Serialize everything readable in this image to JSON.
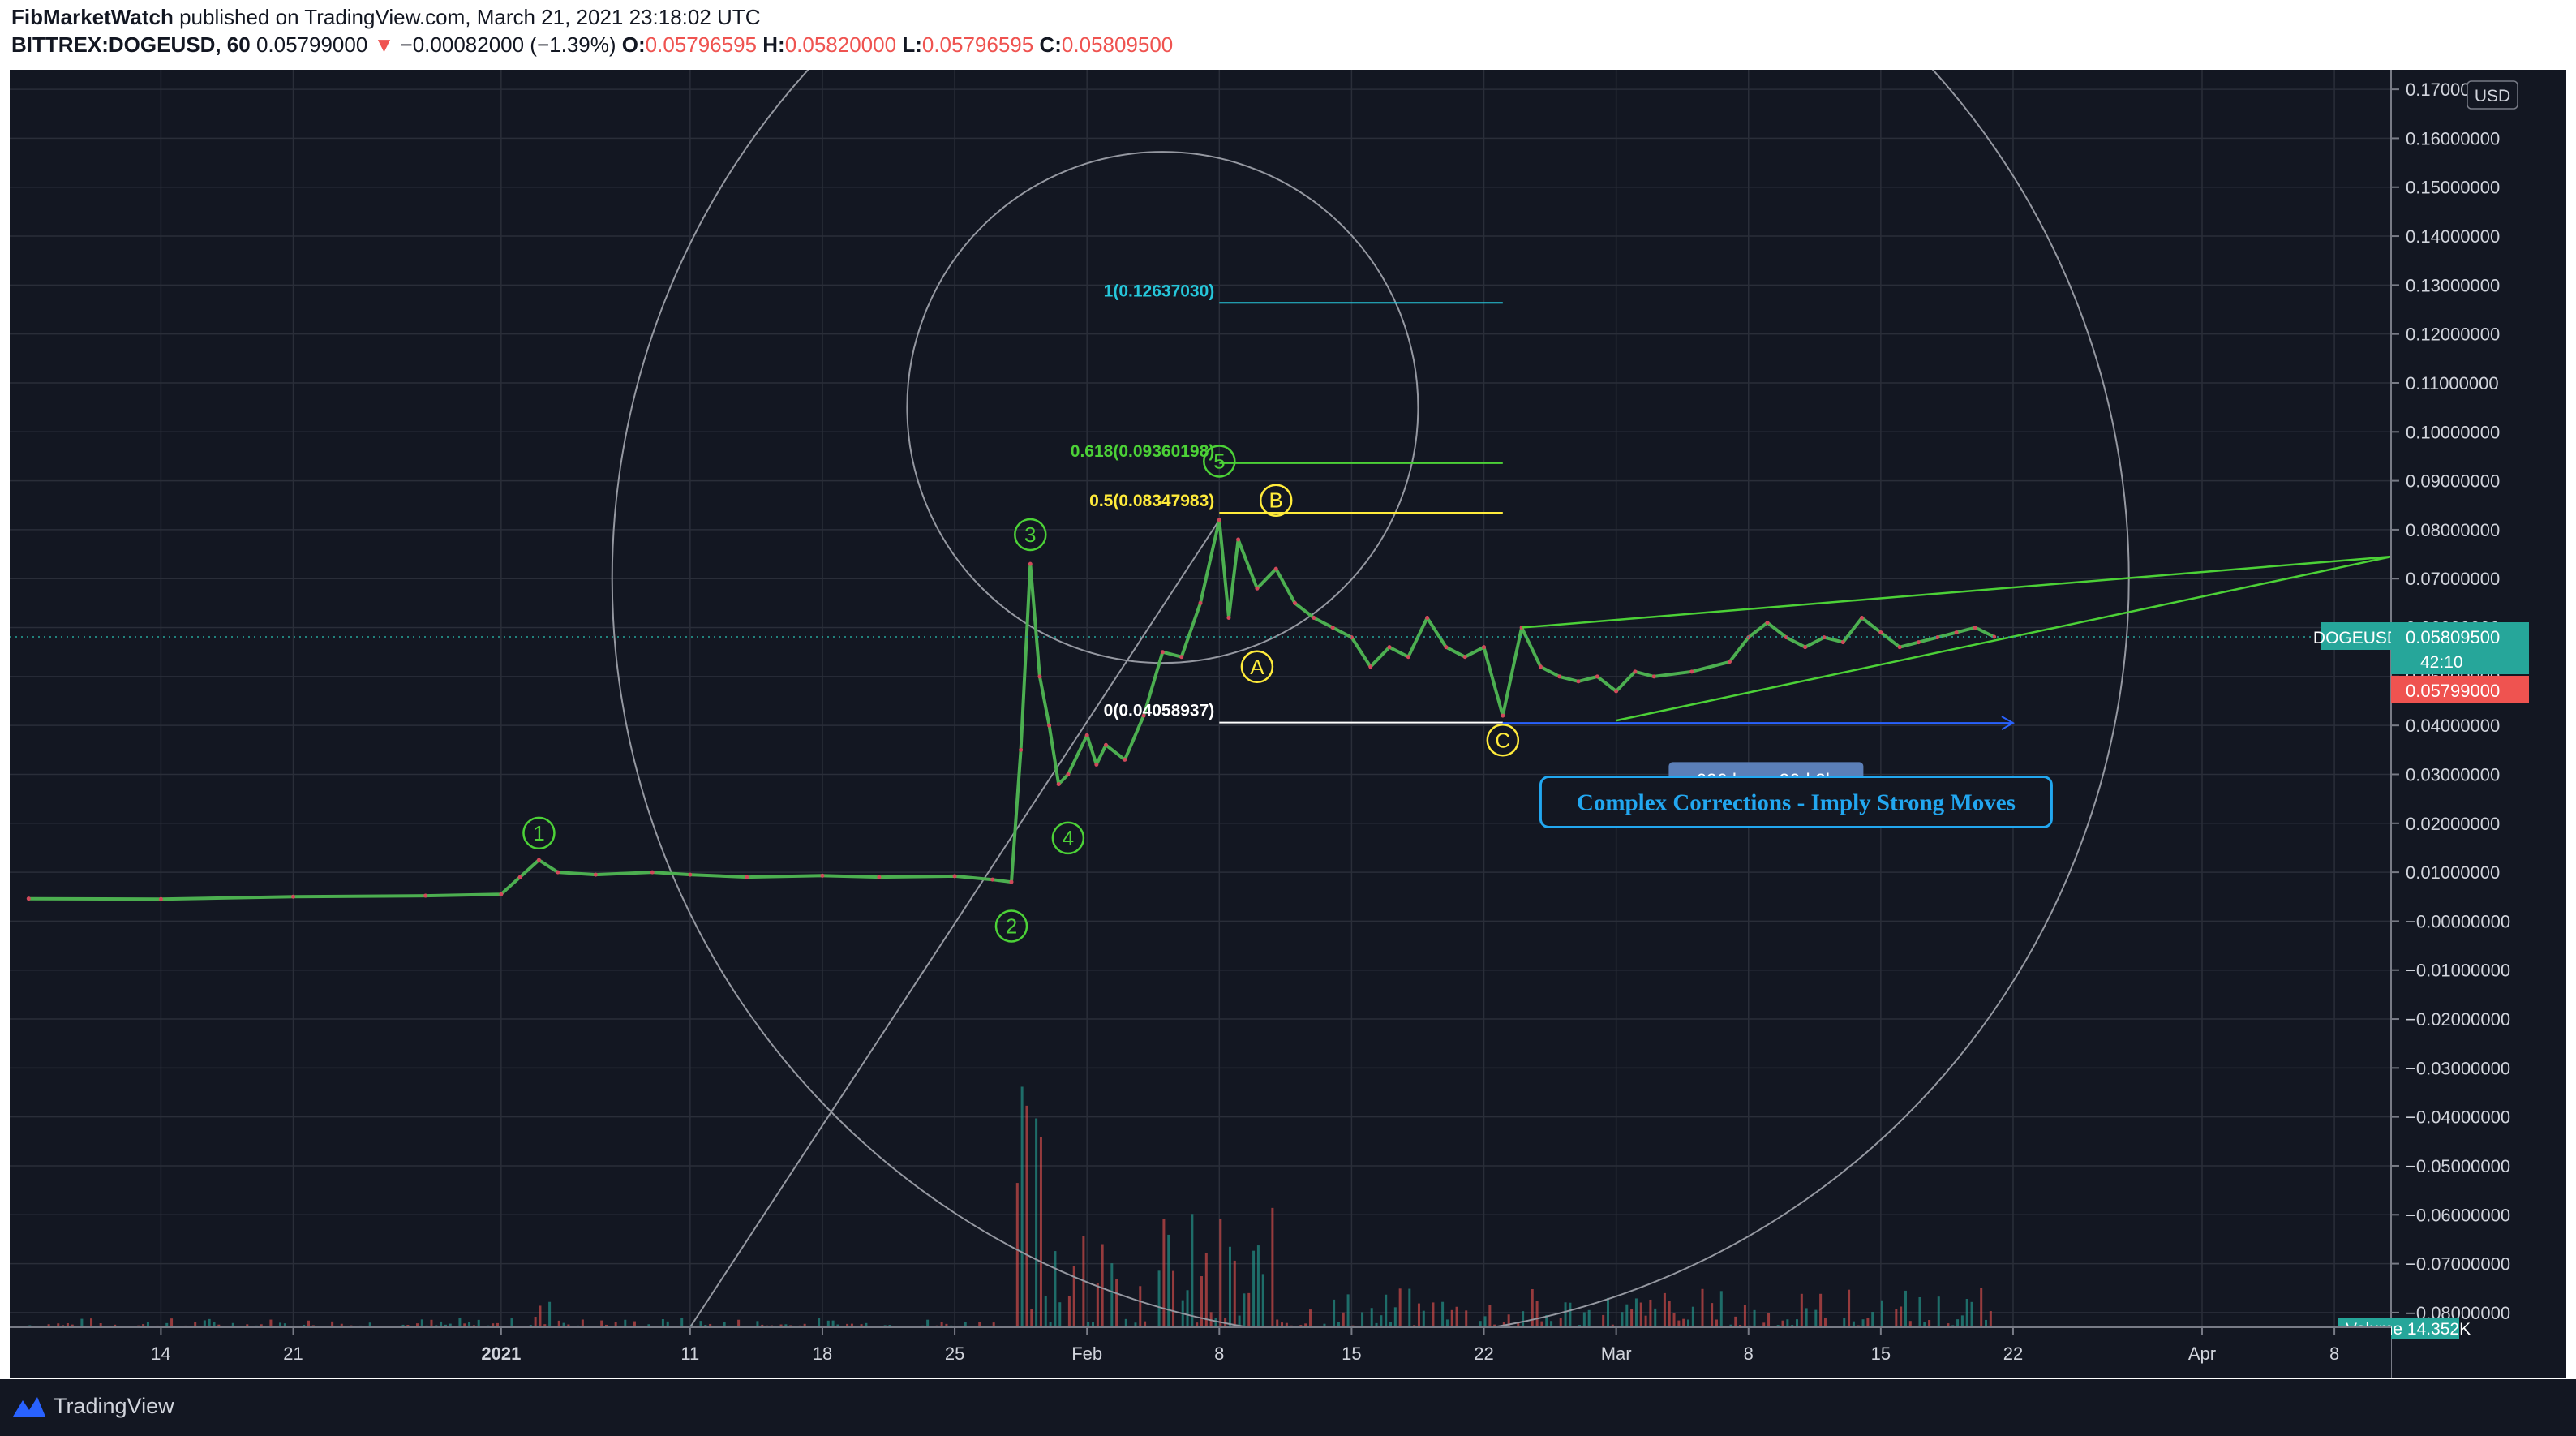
{
  "header": {
    "author": "FibMarketWatch",
    "published_text": " published on TradingView.com, March 21, 2021 23:18:02 UTC",
    "symbol": "BITTREX:DOGEUSD, 60",
    "last_price": "0.05799000",
    "change_arrow": "▼",
    "change": "−0.00082000 (−1.39%)",
    "open_label": "O:",
    "open": "0.05796595",
    "high_label": "H:",
    "high": "0.05820000",
    "low_label": "L:",
    "low": "0.05796595",
    "close_label": "C:",
    "close": "0.05809500"
  },
  "footer": {
    "brand": "TradingView"
  },
  "colors": {
    "background": "#131722",
    "grid": "#2a2e39",
    "price_line": "#4caf50",
    "price_dots": "#d1495b",
    "fib_1": "#26c6da",
    "fib_618": "#4cd137",
    "fib_05": "#ffeb3b",
    "fib_0": "#ffffff",
    "wave": "#4cd137",
    "abc": "#ffeb3b",
    "wedge": "#4cd137",
    "circle": "#9598a1",
    "annotation": "#22a7f0",
    "last_badge": "#26a69a",
    "down_badge": "#ef5350",
    "vol_up": "#26a69a",
    "vol_down": "#ef5350"
  },
  "chart_data": {
    "type": "line",
    "title": "",
    "currency": "USD",
    "y_axis": {
      "ticks": [
        "0.17000000",
        "0.16000000",
        "0.15000000",
        "0.14000000",
        "0.13000000",
        "0.12000000",
        "0.11000000",
        "0.10000000",
        "0.09000000",
        "0.08000000",
        "0.07000000",
        "0.06000000",
        "0.05000000",
        "0.04000000",
        "0.03000000",
        "0.02000000",
        "0.01000000",
        "−0.00000000",
        "−0.01000000",
        "−0.02000000",
        "−0.03000000",
        "−0.04000000",
        "−0.05000000",
        "−0.06000000",
        "−0.07000000",
        "−0.08000000"
      ],
      "values": [
        0.17,
        0.16,
        0.15,
        0.14,
        0.13,
        0.12,
        0.11,
        0.1,
        0.09,
        0.08,
        0.07,
        0.06,
        0.05,
        0.04,
        0.03,
        0.02,
        0.01,
        0,
        -0.01,
        -0.02,
        -0.03,
        -0.04,
        -0.05,
        -0.06,
        -0.07,
        -0.08
      ],
      "range": [
        -0.083,
        0.174
      ]
    },
    "x_axis": {
      "labels": [
        "14",
        "21",
        "2021",
        "11",
        "18",
        "25",
        "Feb",
        "8",
        "15",
        "22",
        "Mar",
        "8",
        "15",
        "22",
        "Apr",
        "8"
      ],
      "dates": [
        "2020-12-14",
        "2020-12-21",
        "2021-01-01",
        "2021-01-11",
        "2021-01-18",
        "2021-01-25",
        "2021-02-01",
        "2021-02-08",
        "2021-02-15",
        "2021-02-22",
        "2021-03-01",
        "2021-03-08",
        "2021-03-15",
        "2021-03-22",
        "2021-04-01",
        "2021-04-08"
      ],
      "bold": [
        "2021"
      ],
      "range": [
        "2020-12-06",
        "2021-04-11"
      ]
    },
    "series": [
      {
        "values": [
          [
            "2020-12-07",
            0.0046
          ],
          [
            "2020-12-14",
            0.0045
          ],
          [
            "2020-12-21",
            0.005
          ],
          [
            "2020-12-28",
            0.0052
          ],
          [
            "2021-01-01",
            0.0055
          ],
          [
            "2021-01-02",
            0.009
          ],
          [
            "2021-01-03",
            0.0125
          ],
          [
            "2021-01-04",
            0.01
          ],
          [
            "2021-01-06",
            0.0095
          ],
          [
            "2021-01-09",
            0.01
          ],
          [
            "2021-01-11",
            0.0095
          ],
          [
            "2021-01-14",
            0.009
          ],
          [
            "2021-01-18",
            0.0093
          ],
          [
            "2021-01-21",
            0.009
          ],
          [
            "2021-01-25",
            0.0092
          ],
          [
            "2021-01-27",
            0.0085
          ],
          [
            "2021-01-28",
            0.008
          ],
          [
            "2021-01-28T12:00",
            0.035
          ],
          [
            "2021-01-29",
            0.073
          ],
          [
            "2021-01-29T12:00",
            0.05
          ],
          [
            "2021-01-30",
            0.04
          ],
          [
            "2021-01-30T12:00",
            0.028
          ],
          [
            "2021-01-31",
            0.03
          ],
          [
            "2021-02-01",
            0.038
          ],
          [
            "2021-02-01T12:00",
            0.032
          ],
          [
            "2021-02-02",
            0.036
          ],
          [
            "2021-02-03",
            0.033
          ],
          [
            "2021-02-04",
            0.042
          ],
          [
            "2021-02-05",
            0.055
          ],
          [
            "2021-02-06",
            0.054
          ],
          [
            "2021-02-07",
            0.065
          ],
          [
            "2021-02-08",
            0.082
          ],
          [
            "2021-02-08T12:00",
            0.062
          ],
          [
            "2021-02-09",
            0.078
          ],
          [
            "2021-02-10",
            0.068
          ],
          [
            "2021-02-11",
            0.072
          ],
          [
            "2021-02-12",
            0.065
          ],
          [
            "2021-02-13",
            0.062
          ],
          [
            "2021-02-14",
            0.06
          ],
          [
            "2021-02-15",
            0.058
          ],
          [
            "2021-02-16",
            0.052
          ],
          [
            "2021-02-17",
            0.056
          ],
          [
            "2021-02-18",
            0.054
          ],
          [
            "2021-02-19",
            0.062
          ],
          [
            "2021-02-20",
            0.056
          ],
          [
            "2021-02-21",
            0.054
          ],
          [
            "2021-02-22",
            0.056
          ],
          [
            "2021-02-23",
            0.042
          ],
          [
            "2021-02-24",
            0.06
          ],
          [
            "2021-02-25",
            0.052
          ],
          [
            "2021-02-26",
            0.05
          ],
          [
            "2021-02-27",
            0.049
          ],
          [
            "2021-02-28",
            0.05
          ],
          [
            "2021-03-01",
            0.047
          ],
          [
            "2021-03-02",
            0.051
          ],
          [
            "2021-03-03",
            0.05
          ],
          [
            "2021-03-05",
            0.051
          ],
          [
            "2021-03-07",
            0.053
          ],
          [
            "2021-03-08",
            0.058
          ],
          [
            "2021-03-09",
            0.061
          ],
          [
            "2021-03-10",
            0.058
          ],
          [
            "2021-03-11",
            0.056
          ],
          [
            "2021-03-12",
            0.058
          ],
          [
            "2021-03-13",
            0.057
          ],
          [
            "2021-03-14",
            0.062
          ],
          [
            "2021-03-15",
            0.059
          ],
          [
            "2021-03-16",
            0.056
          ],
          [
            "2021-03-17",
            0.057
          ],
          [
            "2021-03-18",
            0.058
          ],
          [
            "2021-03-19",
            0.059
          ],
          [
            "2021-03-20",
            0.06
          ],
          [
            "2021-03-21",
            0.0581
          ]
        ]
      }
    ],
    "last_price_label": "DOGEUSD",
    "last_price": "0.05809500",
    "countdown": "42:10",
    "prev_price": "0.05799000",
    "fib_levels": [
      {
        "label": "1(0.12637030)",
        "value": 0.1263703,
        "color_key": "fib_1"
      },
      {
        "label": "0.618(0.09360198)",
        "value": 0.09360198,
        "color_key": "fib_618"
      },
      {
        "label": "0.5(0.08347983)",
        "value": 0.08347983,
        "color_key": "fib_05"
      },
      {
        "label": "0(0.04058937)",
        "value": 0.04058937,
        "color_key": "fib_0"
      }
    ],
    "fib_range": [
      "2021-02-08",
      "2021-02-23"
    ],
    "wave_labels": [
      {
        "label": "1",
        "x": "2021-01-03",
        "y": 0.018
      },
      {
        "label": "2",
        "x": "2021-01-28",
        "y": -0.001
      },
      {
        "label": "3",
        "x": "2021-01-29",
        "y": 0.079
      },
      {
        "label": "4",
        "x": "2021-01-31",
        "y": 0.017
      },
      {
        "label": "5",
        "x": "2021-02-08",
        "y": 0.094
      }
    ],
    "abc_labels": [
      {
        "label": "A",
        "x": "2021-02-10",
        "y": 0.052
      },
      {
        "label": "B",
        "x": "2021-02-11",
        "y": 0.086
      },
      {
        "label": "C",
        "x": "2021-02-23",
        "y": 0.037
      }
    ],
    "wedge_lines": [
      {
        "from": [
          "2021-02-24",
          0.06
        ],
        "to": [
          "2021-04-11",
          0.0745
        ]
      },
      {
        "from": [
          "2021-03-01",
          0.041
        ],
        "to": [
          "2021-04-11",
          0.0745
        ]
      }
    ],
    "measure": {
      "label": "626 bars, 26d 2h",
      "from": [
        "2021-02-23",
        0.0405
      ],
      "to": [
        "2021-03-22",
        0.0405
      ]
    },
    "annotation": "Complex Corrections - Imply Strong Moves",
    "volume_label": "Volume",
    "volume_value": "14.352K"
  }
}
